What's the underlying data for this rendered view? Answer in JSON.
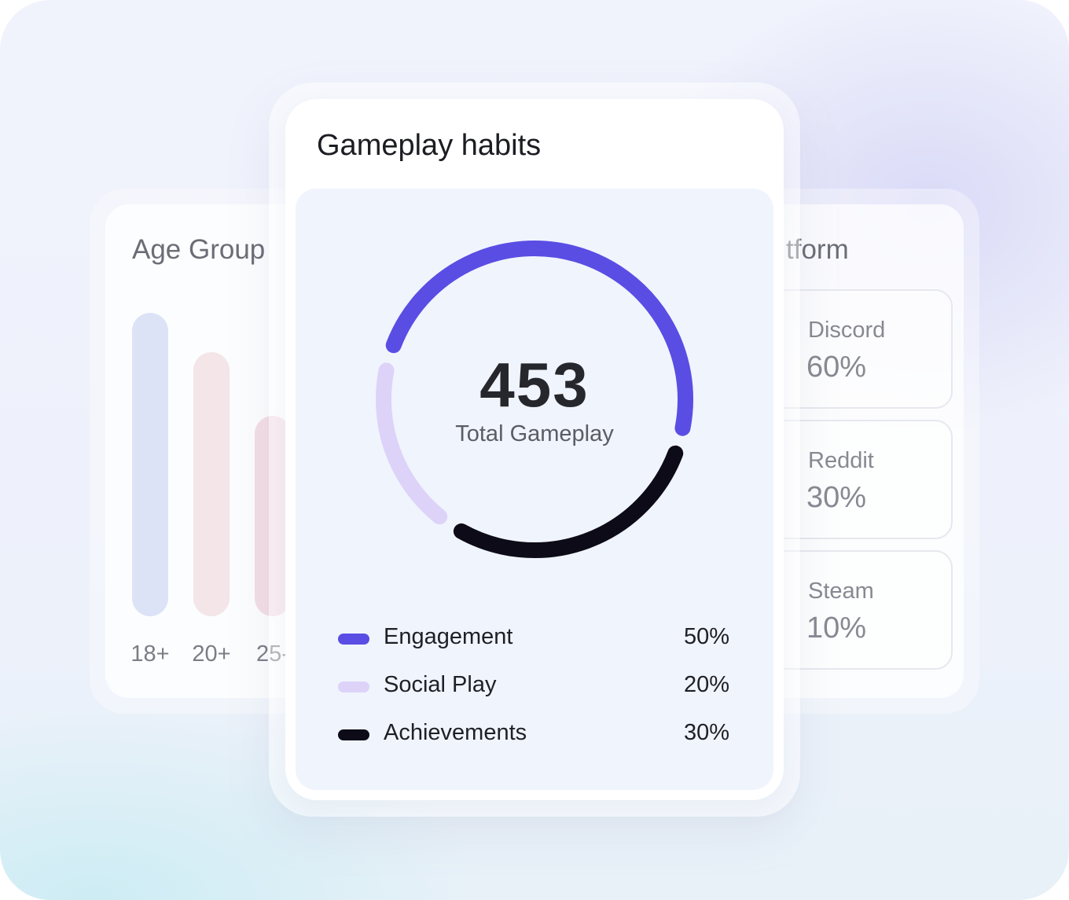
{
  "colors": {
    "engagement": "#5a4de4",
    "social_play": "#ddd3f8",
    "achievements": "#0c0b17"
  },
  "age_group": {
    "title": "Age Group",
    "bars": [
      {
        "label": "18+",
        "value": 100,
        "color": "#dce3f7"
      },
      {
        "label": "20+",
        "value": 87,
        "color": "#f3e5e8"
      },
      {
        "label": "25-",
        "value": 66,
        "color": "#f3dde6"
      }
    ]
  },
  "platform": {
    "title": "tform",
    "items": [
      {
        "name": "Discord",
        "percent": "60%"
      },
      {
        "name": "Reddit",
        "percent": "30%"
      },
      {
        "name": "Steam",
        "percent": "10%"
      }
    ]
  },
  "gameplay": {
    "title": "Gameplay habits",
    "total_value": "453",
    "total_label": "Total Gameplay"
  },
  "chart_data": {
    "type": "pie",
    "title": "Gameplay habits",
    "center_value": 453,
    "center_label": "Total Gameplay",
    "series": [
      {
        "name": "Engagement",
        "value": 50,
        "label": "50%",
        "color": "#5a4de4"
      },
      {
        "name": "Social Play",
        "value": 20,
        "label": "20%",
        "color": "#ddd3f8"
      },
      {
        "name": "Achievements",
        "value": 30,
        "label": "30%",
        "color": "#0c0b17"
      }
    ]
  }
}
